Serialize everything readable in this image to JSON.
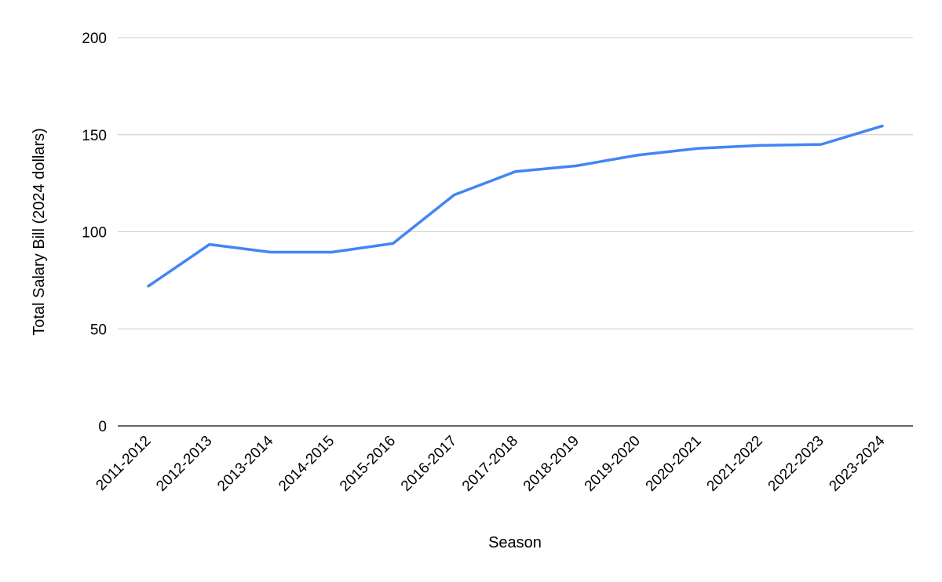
{
  "chart_data": {
    "type": "line",
    "title": "",
    "xlabel": "Season",
    "ylabel": "Total Salary Bill (2024 dollars)",
    "ylim": [
      0,
      200
    ],
    "yticks": [
      0,
      50,
      100,
      150,
      200
    ],
    "ytick_labels": [
      "0",
      "50",
      "100",
      "150",
      "200"
    ],
    "grid": true,
    "legend": "none",
    "categories": [
      "2011-2012",
      "2012-2013",
      "2013-2014",
      "2014-2015",
      "2015-2016",
      "2016-2017",
      "2017-2018",
      "2018-2019",
      "2019-2020",
      "2020-2021",
      "2021-2022",
      "2022-2023",
      "2023-2024"
    ],
    "series": [
      {
        "color": "#4285f4",
        "values": [
          72,
          93.5,
          89.5,
          89.5,
          94,
          119,
          131,
          134,
          139.5,
          143,
          144.5,
          145,
          154.5
        ]
      }
    ]
  }
}
